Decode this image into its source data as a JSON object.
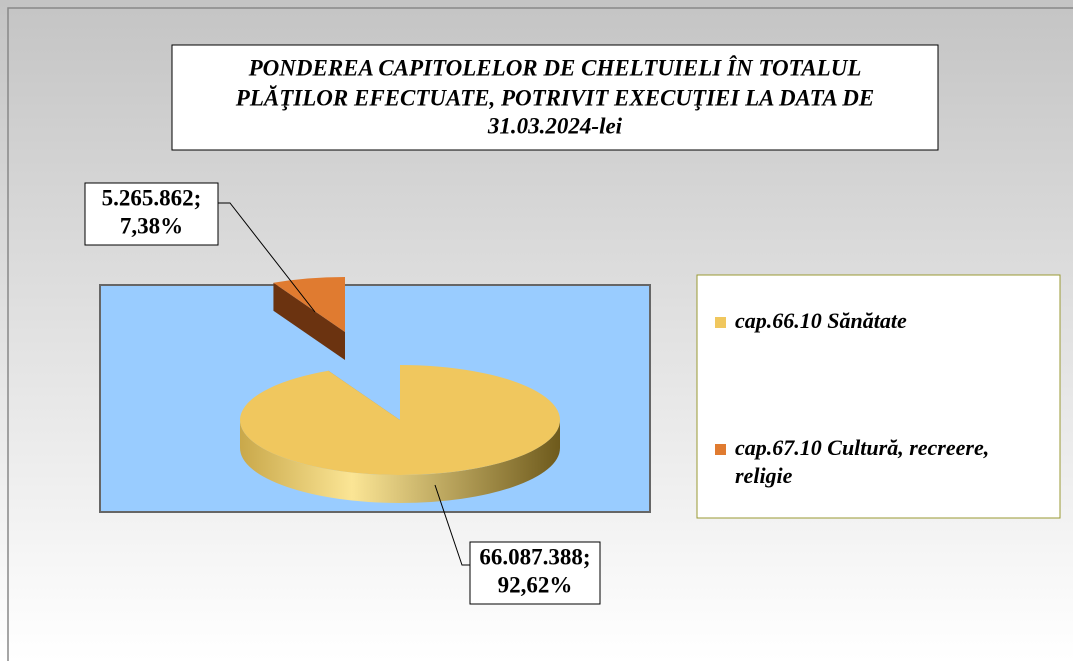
{
  "chart_data": {
    "type": "pie",
    "title": [
      "PONDEREA CAPITOLELOR DE CHELTUIELI ÎN TOTALUL",
      "PLĂŢILOR EFECTUATE, POTRIVIT EXECUŢIEI  LA DATA DE",
      "31.03.2024-lei"
    ],
    "categories": [
      "cap.66.10 Sănătate",
      "cap.67.10 Cultură, recreere, religie"
    ],
    "values": [
      66087388,
      5265862
    ],
    "value_labels": [
      "66.087.388;",
      "5.265.862;"
    ],
    "percents": [
      92.62,
      7.38
    ],
    "percent_labels": [
      "92,62%",
      "7,38%"
    ],
    "colors": [
      "#f0c75e",
      "#e07b30"
    ],
    "legend": "right"
  }
}
